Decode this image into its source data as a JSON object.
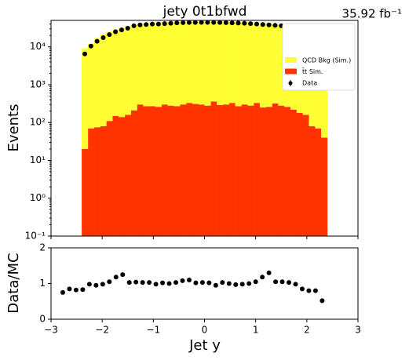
{
  "chart_data": [
    {
      "type": "histogram",
      "title": "jety  0t1bfwd",
      "annotation": "35.92 fb⁻¹",
      "ylabel": "Events",
      "ylog": true,
      "stacked": true,
      "legend": "upper right",
      "bins": [
        -2.4,
        -2.28,
        -2.16,
        -2.04,
        -1.92,
        -1.8,
        -1.68,
        -1.56,
        -1.44,
        -1.32,
        -1.2,
        -1.08,
        -0.96,
        -0.84,
        -0.72,
        -0.6,
        -0.48,
        -0.36,
        -0.24,
        -0.12,
        0,
        0.12,
        0.24,
        0.36,
        0.48,
        0.6,
        0.72,
        0.84,
        0.96,
        1.08,
        1.2,
        1.32,
        1.44,
        1.56,
        1.68,
        1.8,
        1.92,
        2.04,
        2.16,
        2.28,
        2.4
      ],
      "series": [
        {
          "name": "t̄t Sim.",
          "color": "#ff3300",
          "values": [
            20,
            70,
            75,
            80,
            110,
            150,
            140,
            160,
            210,
            300,
            270,
            270,
            260,
            300,
            280,
            270,
            300,
            330,
            310,
            300,
            280,
            360,
            290,
            300,
            330,
            270,
            300,
            280,
            330,
            250,
            260,
            320,
            280,
            260,
            220,
            180,
            160,
            80,
            70,
            40
          ]
        },
        {
          "name": "QCD Bkg (Sim.)",
          "color": "#ffff33",
          "values": [
            9000,
            12000,
            17000,
            21000,
            25000,
            29000,
            32000,
            35000,
            38000,
            40000,
            42000,
            43000,
            44000,
            45000,
            45000,
            46000,
            46000,
            46000,
            46000,
            46000,
            46000,
            46000,
            46000,
            46000,
            46000,
            45000,
            45000,
            44000,
            43000,
            42000,
            41000,
            40000,
            38000,
            36000,
            34000,
            31000,
            28000,
            25000,
            22000,
            20000
          ]
        },
        {
          "name": "Data",
          "color": "#000000",
          "marker": "o",
          "values": [
            6500,
            10500,
            14000,
            17500,
            21000,
            25000,
            28000,
            31000,
            36000,
            38000,
            39000,
            40000,
            40000,
            41000,
            42000,
            43000,
            43500,
            44000,
            44000,
            44500,
            44500,
            44000,
            44000,
            43500,
            43000,
            42500,
            42000,
            41000,
            40000,
            39000,
            38000,
            37000,
            36000,
            33000,
            30000,
            27000,
            23000,
            19000,
            15000,
            10000
          ]
        }
      ],
      "xlim": [
        -3,
        3
      ],
      "xticks": [
        -3,
        -2,
        -1,
        0,
        1,
        2,
        3
      ],
      "ylim": [
        0.1,
        50000
      ],
      "yticks": [
        {
          "value": 0.1,
          "label": "10⁻¹"
        },
        {
          "value": 1,
          "label": "10⁰"
        },
        {
          "value": 10,
          "label": "10¹"
        },
        {
          "value": 100,
          "label": "10²"
        },
        {
          "value": 1000,
          "label": "10³"
        },
        {
          "value": 10000,
          "label": "10⁴"
        }
      ]
    },
    {
      "type": "scatter",
      "xlabel": "Jet y",
      "ylabel": "Data/MC",
      "color": "#000000",
      "x": [
        -2.77,
        -2.64,
        -2.51,
        -2.38,
        -2.25,
        -2.12,
        -1.99,
        -1.86,
        -1.73,
        -1.6,
        -1.47,
        -1.34,
        -1.21,
        -1.08,
        -0.95,
        -0.82,
        -0.69,
        -0.56,
        -0.43,
        -0.3,
        -0.17,
        -0.04,
        0.09,
        0.22,
        0.35,
        0.48,
        0.61,
        0.74,
        0.87,
        1.0,
        1.13,
        1.26,
        1.39,
        1.52,
        1.65,
        1.78,
        1.91,
        2.04,
        2.17,
        2.3
      ],
      "values": [
        0.75,
        0.85,
        0.82,
        0.83,
        0.98,
        0.95,
        0.98,
        1.05,
        1.18,
        1.25,
        1.03,
        1.04,
        1.03,
        1.03,
        0.98,
        1.02,
        1.0,
        1.03,
        1.08,
        1.1,
        1.02,
        1.03,
        1.02,
        0.95,
        1.03,
        1.0,
        0.97,
        0.98,
        1.0,
        1.05,
        1.18,
        1.3,
        1.05,
        1.05,
        1.03,
        0.98,
        0.85,
        0.8,
        0.8,
        0.52
      ],
      "xlim": [
        -3,
        3
      ],
      "xticks": [
        {
          "value": -3,
          "label": "−3"
        },
        {
          "value": -2,
          "label": "−2"
        },
        {
          "value": -1,
          "label": "−1"
        },
        0,
        1,
        2,
        3
      ],
      "ylim": [
        0,
        2
      ],
      "yticks": [
        0,
        1,
        2
      ]
    }
  ]
}
